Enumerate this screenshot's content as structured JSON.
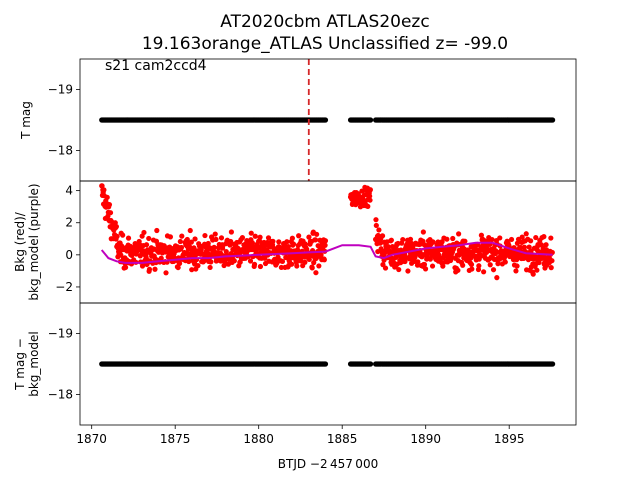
{
  "chart_data": {
    "title_line1": "AT2020cbm  ATLAS20ezc",
    "title_line2": "19.163orange_ATLAS Unclassified z= -99.0",
    "xlabel": "BTJD −2 457 000",
    "xlim": [
      1869.3,
      1899.0
    ],
    "xticks": [
      1870,
      1875,
      1880,
      1885,
      1890,
      1895
    ],
    "panels": [
      {
        "type": "scatter",
        "ylabel": [
          "T mag"
        ],
        "ylim": [
          -17.5,
          -19.5
        ],
        "yticks": [
          -19,
          -18
        ],
        "annotation": "s21 cam2ccd4",
        "marker_line_x": 1883.0,
        "marker_line_color": "#d62728",
        "series": [
          {
            "color": "#000000",
            "value": -18.5,
            "segments": [
              [
                1870.6,
                1884.0
              ],
              [
                1885.5,
                1886.7
              ],
              [
                1887.0,
                1897.6
              ]
            ]
          }
        ]
      },
      {
        "type": "scatter+line",
        "ylabel": [
          "Bkg (red)/",
          "bkg_model (purple)"
        ],
        "ylim": [
          -3.0,
          4.6
        ],
        "yticks": [
          -2,
          0,
          2,
          4
        ],
        "series": [
          {
            "name": "Bkg",
            "color": "#ff0000"
          },
          {
            "name": "bkg_model",
            "color": "#bf00bf"
          }
        ],
        "bkg_model_curve": [
          [
            1870.6,
            0.3
          ],
          [
            1871.0,
            -0.2
          ],
          [
            1871.5,
            -0.4
          ],
          [
            1872.0,
            -0.5
          ],
          [
            1873.0,
            -0.5
          ],
          [
            1874.0,
            -0.4
          ],
          [
            1875.0,
            -0.3
          ],
          [
            1876.0,
            -0.2
          ],
          [
            1877.0,
            -0.2
          ],
          [
            1878.0,
            -0.1
          ],
          [
            1879.0,
            -0.05
          ],
          [
            1880.0,
            0.0
          ],
          [
            1881.0,
            0.05
          ],
          [
            1882.0,
            0.1
          ],
          [
            1883.0,
            0.15
          ],
          [
            1884.0,
            0.2
          ],
          [
            1885.0,
            0.6
          ],
          [
            1886.0,
            0.6
          ],
          [
            1886.7,
            0.5
          ],
          [
            1887.0,
            -0.1
          ],
          [
            1887.5,
            -0.2
          ],
          [
            1888.0,
            0.0
          ],
          [
            1889.0,
            0.2
          ],
          [
            1890.0,
            0.4
          ],
          [
            1891.0,
            0.5
          ],
          [
            1892.0,
            0.6
          ],
          [
            1893.0,
            0.75
          ],
          [
            1894.0,
            0.75
          ],
          [
            1895.0,
            0.4
          ],
          [
            1896.0,
            0.1
          ],
          [
            1897.6,
            0.0
          ]
        ]
      },
      {
        "type": "scatter",
        "ylabel": [
          "T mag −",
          "bkg_model"
        ],
        "ylim": [
          -17.5,
          -19.5
        ],
        "yticks": [
          -19,
          -18
        ],
        "series": [
          {
            "color": "#000000",
            "value": -18.5,
            "segments": [
              [
                1870.6,
                1884.0
              ],
              [
                1885.5,
                1886.7
              ],
              [
                1887.0,
                1897.6
              ]
            ]
          }
        ]
      }
    ]
  }
}
